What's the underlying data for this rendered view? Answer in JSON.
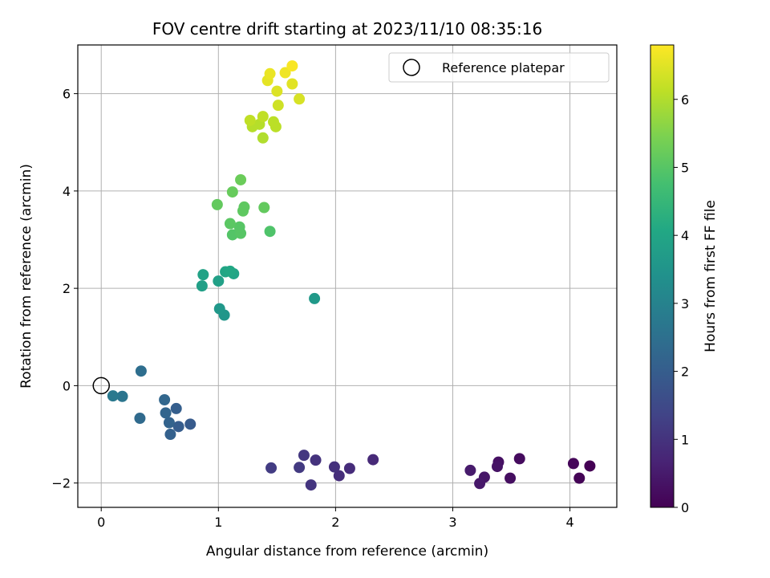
{
  "chart_data": {
    "type": "scatter",
    "title": "FOV centre drift starting at 2023/11/10 08:35:16",
    "xlabel": "Angular distance from reference (arcmin)",
    "ylabel": "Rotation from reference (arcmin)",
    "xlim": [
      -0.2,
      4.4
    ],
    "ylim": [
      -2.5,
      7.0
    ],
    "xticks": [
      0,
      1,
      2,
      3,
      4
    ],
    "yticks": [
      -2,
      0,
      2,
      4,
      6
    ],
    "xtick_labels": [
      "0",
      "1",
      "2",
      "3",
      "4"
    ],
    "ytick_labels": [
      "−2",
      "0",
      "2",
      "4",
      "6"
    ],
    "grid": true,
    "legend": {
      "placement": "top-right",
      "label": "Reference platepar"
    },
    "reference_point": {
      "x": 0,
      "y": 0
    },
    "colorbar": {
      "label": "Hours from first FF file",
      "colormap": "viridis",
      "range": [
        0,
        6.8
      ],
      "ticks": [
        0,
        1,
        2,
        3,
        4,
        5,
        6
      ],
      "tick_labels": [
        "0",
        "1",
        "2",
        "3",
        "4",
        "5",
        "6"
      ]
    },
    "points": [
      {
        "x": 4.17,
        "y": -1.65,
        "t": 0.0
      },
      {
        "x": 4.08,
        "y": -1.9,
        "t": 0.05
      },
      {
        "x": 4.03,
        "y": -1.6,
        "t": 0.1
      },
      {
        "x": 3.57,
        "y": -1.5,
        "t": 0.2
      },
      {
        "x": 3.49,
        "y": -1.9,
        "t": 0.25
      },
      {
        "x": 3.39,
        "y": -1.57,
        "t": 0.3
      },
      {
        "x": 3.38,
        "y": -1.66,
        "t": 0.35
      },
      {
        "x": 3.27,
        "y": -1.88,
        "t": 0.4
      },
      {
        "x": 3.23,
        "y": -2.01,
        "t": 0.45
      },
      {
        "x": 3.15,
        "y": -1.74,
        "t": 0.5
      },
      {
        "x": 2.32,
        "y": -1.52,
        "t": 0.8
      },
      {
        "x": 2.12,
        "y": -1.7,
        "t": 0.85
      },
      {
        "x": 2.03,
        "y": -1.85,
        "t": 0.9
      },
      {
        "x": 1.99,
        "y": -1.67,
        "t": 0.95
      },
      {
        "x": 1.83,
        "y": -1.53,
        "t": 1.0
      },
      {
        "x": 1.79,
        "y": -2.04,
        "t": 1.05
      },
      {
        "x": 1.73,
        "y": -1.43,
        "t": 1.1
      },
      {
        "x": 1.69,
        "y": -1.68,
        "t": 1.15
      },
      {
        "x": 1.45,
        "y": -1.69,
        "t": 1.2
      },
      {
        "x": 0.76,
        "y": -0.79,
        "t": 1.95
      },
      {
        "x": 0.66,
        "y": -0.84,
        "t": 2.0
      },
      {
        "x": 0.64,
        "y": -0.47,
        "t": 2.05
      },
      {
        "x": 0.59,
        "y": -1.0,
        "t": 2.1
      },
      {
        "x": 0.58,
        "y": -0.76,
        "t": 2.15
      },
      {
        "x": 0.55,
        "y": -0.56,
        "t": 2.2
      },
      {
        "x": 0.54,
        "y": -0.29,
        "t": 2.25
      },
      {
        "x": 0.33,
        "y": -0.67,
        "t": 2.35
      },
      {
        "x": 0.34,
        "y": 0.3,
        "t": 2.45
      },
      {
        "x": 0.18,
        "y": -0.22,
        "t": 2.65
      },
      {
        "x": 0.1,
        "y": -0.21,
        "t": 2.75
      },
      {
        "x": 1.05,
        "y": 1.45,
        "t": 3.55
      },
      {
        "x": 1.01,
        "y": 1.58,
        "t": 3.6
      },
      {
        "x": 1.82,
        "y": 1.79,
        "t": 3.65
      },
      {
        "x": 0.86,
        "y": 2.05,
        "t": 3.8
      },
      {
        "x": 1.0,
        "y": 2.15,
        "t": 3.85
      },
      {
        "x": 0.87,
        "y": 2.28,
        "t": 3.9
      },
      {
        "x": 1.13,
        "y": 2.3,
        "t": 3.95
      },
      {
        "x": 1.06,
        "y": 2.34,
        "t": 4.0
      },
      {
        "x": 1.1,
        "y": 2.35,
        "t": 4.05
      },
      {
        "x": 1.44,
        "y": 3.17,
        "t": 4.9
      },
      {
        "x": 1.12,
        "y": 3.1,
        "t": 4.95
      },
      {
        "x": 1.19,
        "y": 3.13,
        "t": 5.0
      },
      {
        "x": 1.18,
        "y": 3.26,
        "t": 5.0
      },
      {
        "x": 1.1,
        "y": 3.33,
        "t": 5.05
      },
      {
        "x": 1.21,
        "y": 3.59,
        "t": 5.1
      },
      {
        "x": 1.22,
        "y": 3.67,
        "t": 5.1
      },
      {
        "x": 1.39,
        "y": 3.66,
        "t": 5.15
      },
      {
        "x": 0.99,
        "y": 3.72,
        "t": 5.15
      },
      {
        "x": 1.12,
        "y": 3.98,
        "t": 5.2
      },
      {
        "x": 1.19,
        "y": 4.23,
        "t": 5.25
      },
      {
        "x": 1.38,
        "y": 5.09,
        "t": 6.0
      },
      {
        "x": 1.29,
        "y": 5.32,
        "t": 6.05
      },
      {
        "x": 1.35,
        "y": 5.37,
        "t": 6.05
      },
      {
        "x": 1.49,
        "y": 5.32,
        "t": 6.1
      },
      {
        "x": 1.47,
        "y": 5.42,
        "t": 6.1
      },
      {
        "x": 1.27,
        "y": 5.45,
        "t": 6.15
      },
      {
        "x": 1.38,
        "y": 5.53,
        "t": 6.15
      },
      {
        "x": 1.51,
        "y": 5.76,
        "t": 6.3
      },
      {
        "x": 1.69,
        "y": 5.89,
        "t": 6.4
      },
      {
        "x": 1.5,
        "y": 6.05,
        "t": 6.45
      },
      {
        "x": 1.63,
        "y": 6.2,
        "t": 6.5
      },
      {
        "x": 1.42,
        "y": 6.27,
        "t": 6.55
      },
      {
        "x": 1.44,
        "y": 6.41,
        "t": 6.6
      },
      {
        "x": 1.57,
        "y": 6.43,
        "t": 6.65
      },
      {
        "x": 1.63,
        "y": 6.57,
        "t": 6.75
      }
    ]
  }
}
